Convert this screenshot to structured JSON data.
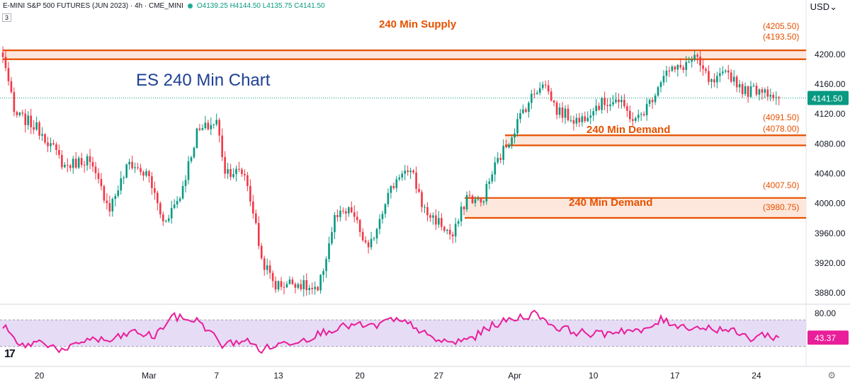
{
  "header": {
    "symbol": "E-MINI S&P 500 FUTURES (JUN 2023) · 4h · CME_MINI",
    "ohlc": "O4139.25 H4144.50 L4135.75 C4141.50",
    "collapse_count": "3",
    "currency": "USD"
  },
  "annotations": {
    "chart_title": "ES 240 Min Chart",
    "supply_label": "240 Min Supply",
    "demand1_label": "240 Min Demand",
    "demand2_label": "240 Min Demand",
    "supply_top": "(4205.50)",
    "supply_bottom": "(4193.50)",
    "demand1_top": "(4091.50)",
    "demand1_bottom": "(4078.00)",
    "demand2_top": "(4007.50)",
    "demand2_bottom": "(3980.75)"
  },
  "colors": {
    "up": "#089981",
    "down": "#f23645",
    "zone_border": "#e65100",
    "zone_fill": "#fde3d6",
    "rsi_line": "#e91e9a",
    "rsi_band": "#ddd0f3",
    "price_tag": "#089981",
    "rsi_tag": "#e91e9a"
  },
  "price_axis": {
    "ticks": [
      "4200.00",
      "4160.00",
      "4120.00",
      "4080.00",
      "4040.00",
      "4000.00",
      "3960.00",
      "3920.00",
      "3880.00"
    ],
    "last_price": "4141.50"
  },
  "rsi_axis": {
    "ticks": [
      "80.00"
    ],
    "last_value": "43.37"
  },
  "time_axis": [
    "20",
    "Mar",
    "7",
    "13",
    "20",
    "27",
    "Apr",
    "10",
    "17",
    "24"
  ],
  "chart_data": {
    "type": "candlestick",
    "instrument": "E-MINI S&P 500 FUTURES (JUN 2023)",
    "timeframe": "4h",
    "ylim": [
      3865,
      4235
    ],
    "last_close": 4141.5,
    "zones": [
      {
        "label": "240 Min Supply",
        "top": 4205.5,
        "bottom": 4193.5
      },
      {
        "label": "240 Min Demand",
        "top": 4091.5,
        "bottom": 4078.0
      },
      {
        "label": "240 Min Demand",
        "top": 4007.5,
        "bottom": 3980.75
      }
    ],
    "path_anchors": [
      {
        "i": 0,
        "v": 4195
      },
      {
        "i": 1,
        "v": 4185
      },
      {
        "i": 4,
        "v": 4120
      },
      {
        "i": 9,
        "v": 4110
      },
      {
        "i": 14,
        "v": 4095
      },
      {
        "i": 22,
        "v": 4050
      },
      {
        "i": 30,
        "v": 4060
      },
      {
        "i": 38,
        "v": 3995
      },
      {
        "i": 45,
        "v": 4055
      },
      {
        "i": 52,
        "v": 4035
      },
      {
        "i": 57,
        "v": 3975
      },
      {
        "i": 63,
        "v": 4010
      },
      {
        "i": 69,
        "v": 4095
      },
      {
        "i": 76,
        "v": 4110
      },
      {
        "i": 79,
        "v": 4045
      },
      {
        "i": 86,
        "v": 4040
      },
      {
        "i": 89,
        "v": 3990
      },
      {
        "i": 92,
        "v": 3925
      },
      {
        "i": 97,
        "v": 3890
      },
      {
        "i": 104,
        "v": 3895
      },
      {
        "i": 112,
        "v": 3880
      },
      {
        "i": 118,
        "v": 3980
      },
      {
        "i": 124,
        "v": 3990
      },
      {
        "i": 130,
        "v": 3935
      },
      {
        "i": 136,
        "v": 4005
      },
      {
        "i": 142,
        "v": 4045
      },
      {
        "i": 146,
        "v": 4035
      },
      {
        "i": 150,
        "v": 3990
      },
      {
        "i": 155,
        "v": 3975
      },
      {
        "i": 160,
        "v": 3955
      },
      {
        "i": 165,
        "v": 4010
      },
      {
        "i": 170,
        "v": 4000
      },
      {
        "i": 175,
        "v": 4050
      },
      {
        "i": 180,
        "v": 4085
      },
      {
        "i": 185,
        "v": 4125
      },
      {
        "i": 192,
        "v": 4165
      },
      {
        "i": 197,
        "v": 4125
      },
      {
        "i": 205,
        "v": 4110
      },
      {
        "i": 210,
        "v": 4130
      },
      {
        "i": 218,
        "v": 4140
      },
      {
        "i": 225,
        "v": 4110
      },
      {
        "i": 230,
        "v": 4135
      },
      {
        "i": 235,
        "v": 4175
      },
      {
        "i": 240,
        "v": 4180
      },
      {
        "i": 246,
        "v": 4195
      },
      {
        "i": 252,
        "v": 4160
      },
      {
        "i": 258,
        "v": 4175
      },
      {
        "i": 264,
        "v": 4150
      },
      {
        "i": 270,
        "v": 4155
      },
      {
        "i": 276,
        "v": 4141.5
      }
    ],
    "rsi": {
      "last": 43.37,
      "band": [
        30,
        70
      ],
      "path_anchors": [
        {
          "i": 0,
          "v": 62
        },
        {
          "i": 6,
          "v": 30
        },
        {
          "i": 14,
          "v": 38
        },
        {
          "i": 22,
          "v": 22
        },
        {
          "i": 30,
          "v": 42
        },
        {
          "i": 38,
          "v": 38
        },
        {
          "i": 46,
          "v": 52
        },
        {
          "i": 54,
          "v": 45
        },
        {
          "i": 60,
          "v": 75
        },
        {
          "i": 70,
          "v": 68
        },
        {
          "i": 78,
          "v": 32
        },
        {
          "i": 86,
          "v": 40
        },
        {
          "i": 92,
          "v": 25
        },
        {
          "i": 100,
          "v": 35
        },
        {
          "i": 108,
          "v": 42
        },
        {
          "i": 116,
          "v": 55
        },
        {
          "i": 124,
          "v": 62
        },
        {
          "i": 132,
          "v": 60
        },
        {
          "i": 138,
          "v": 70
        },
        {
          "i": 146,
          "v": 62
        },
        {
          "i": 152,
          "v": 42
        },
        {
          "i": 160,
          "v": 35
        },
        {
          "i": 168,
          "v": 45
        },
        {
          "i": 174,
          "v": 62
        },
        {
          "i": 182,
          "v": 72
        },
        {
          "i": 190,
          "v": 80
        },
        {
          "i": 196,
          "v": 60
        },
        {
          "i": 204,
          "v": 52
        },
        {
          "i": 212,
          "v": 48
        },
        {
          "i": 220,
          "v": 55
        },
        {
          "i": 228,
          "v": 52
        },
        {
          "i": 234,
          "v": 70
        },
        {
          "i": 242,
          "v": 60
        },
        {
          "i": 250,
          "v": 58
        },
        {
          "i": 258,
          "v": 55
        },
        {
          "i": 266,
          "v": 42
        },
        {
          "i": 270,
          "v": 48
        },
        {
          "i": 276,
          "v": 43.37
        }
      ]
    }
  }
}
